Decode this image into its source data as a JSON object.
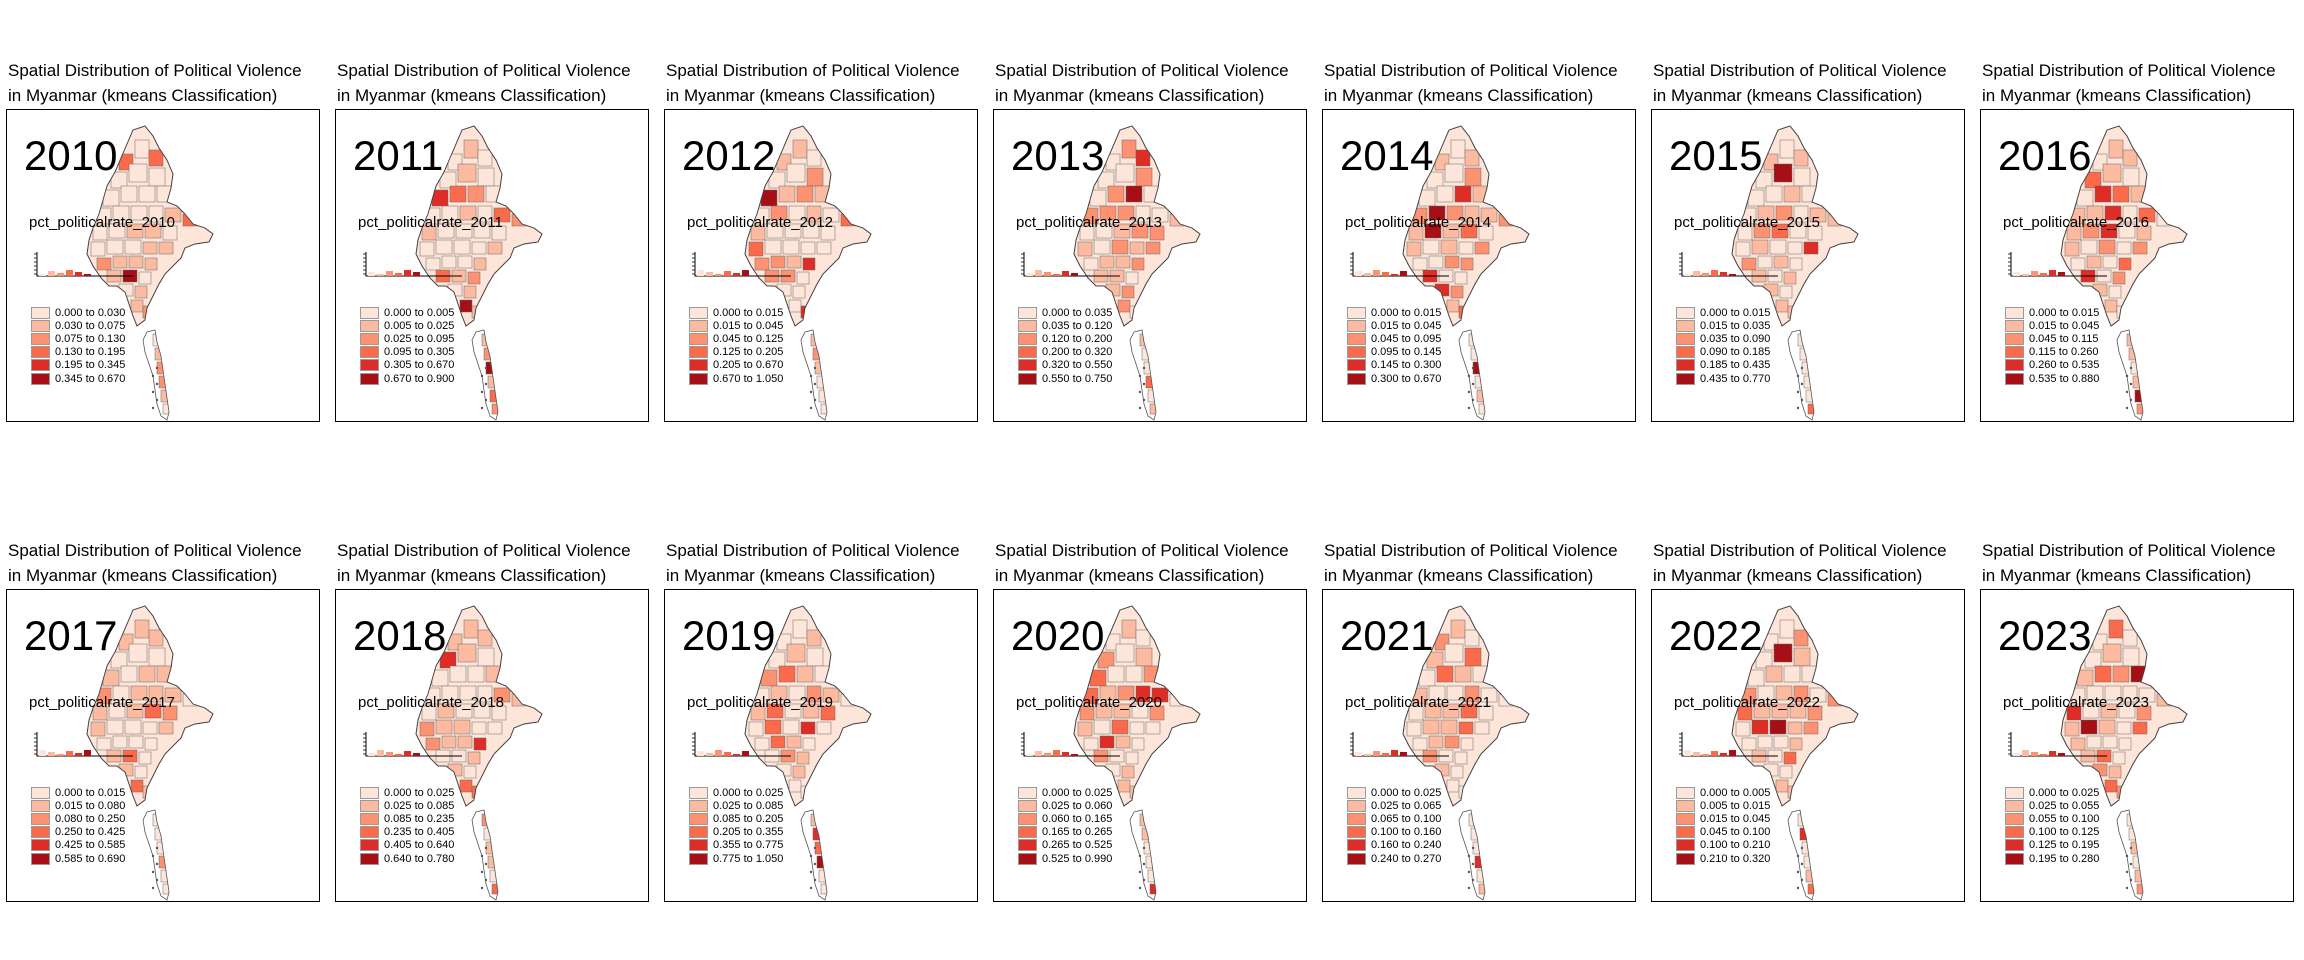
{
  "panel_title_line1": "Spatial Distribution of Political Violence",
  "panel_title_line2": "in Myanmar (kmeans Classification)",
  "palette": [
    "#fee5d9",
    "#fcbba1",
    "#fc9272",
    "#fb6a4a",
    "#de2d26",
    "#a50f15"
  ],
  "panels": [
    {
      "year": "2010",
      "variable": "pct_politicalrate_2010",
      "legend": [
        "0.000 to 0.030",
        "0.030 to 0.075",
        "0.075 to 0.130",
        "0.130 to 0.195",
        "0.195 to 0.345",
        "0.345 to 0.670"
      ]
    },
    {
      "year": "2011",
      "variable": "pct_politicalrate_2011",
      "legend": [
        "0.000 to 0.005",
        "0.005 to 0.025",
        "0.025 to 0.095",
        "0.095 to 0.305",
        "0.305 to 0.670",
        "0.670 to 0.900"
      ]
    },
    {
      "year": "2012",
      "variable": "pct_politicalrate_2012",
      "legend": [
        "0.000 to 0.015",
        "0.015 to 0.045",
        "0.045 to 0.125",
        "0.125 to 0.205",
        "0.205 to 0.670",
        "0.670 to 1.050"
      ]
    },
    {
      "year": "2013",
      "variable": "pct_politicalrate_2013",
      "legend": [
        "0.000 to 0.035",
        "0.035 to 0.120",
        "0.120 to 0.200",
        "0.200 to 0.320",
        "0.320 to 0.550",
        "0.550 to 0.750"
      ]
    },
    {
      "year": "2014",
      "variable": "pct_politicalrate_2014",
      "legend": [
        "0.000 to 0.015",
        "0.015 to 0.045",
        "0.045 to 0.095",
        "0.095 to 0.145",
        "0.145 to 0.300",
        "0.300 to 0.670"
      ]
    },
    {
      "year": "2015",
      "variable": "pct_politicalrate_2015",
      "legend": [
        "0.000 to 0.015",
        "0.015 to 0.035",
        "0.035 to 0.090",
        "0.090 to 0.185",
        "0.185 to 0.435",
        "0.435 to 0.770"
      ]
    },
    {
      "year": "2016",
      "variable": "pct_politicalrate_2016",
      "legend": [
        "0.000 to 0.015",
        "0.015 to 0.045",
        "0.045 to 0.115",
        "0.115 to 0.260",
        "0.260 to 0.535",
        "0.535 to 0.880"
      ]
    },
    {
      "year": "2017",
      "variable": "pct_politicalrate_2017",
      "legend": [
        "0.000 to 0.015",
        "0.015 to 0.080",
        "0.080 to 0.250",
        "0.250 to 0.425",
        "0.425 to 0.585",
        "0.585 to 0.690"
      ]
    },
    {
      "year": "2018",
      "variable": "pct_politicalrate_2018",
      "legend": [
        "0.000 to 0.025",
        "0.025 to 0.085",
        "0.085 to 0.235",
        "0.235 to 0.405",
        "0.405 to 0.640",
        "0.640 to 0.780"
      ]
    },
    {
      "year": "2019",
      "variable": "pct_politicalrate_2019",
      "legend": [
        "0.000 to 0.025",
        "0.025 to 0.085",
        "0.085 to 0.205",
        "0.205 to 0.355",
        "0.355 to 0.775",
        "0.775 to 1.050"
      ]
    },
    {
      "year": "2020",
      "variable": "pct_politicalrate_2020",
      "legend": [
        "0.000 to 0.025",
        "0.025 to 0.060",
        "0.060 to 0.165",
        "0.165 to 0.265",
        "0.265 to 0.525",
        "0.525 to 0.990"
      ]
    },
    {
      "year": "2021",
      "variable": "pct_politicalrate_2021",
      "legend": [
        "0.000 to 0.025",
        "0.025 to 0.065",
        "0.065 to 0.100",
        "0.100 to 0.160",
        "0.160 to 0.240",
        "0.240 to 0.270"
      ]
    },
    {
      "year": "2022",
      "variable": "pct_politicalrate_2022",
      "legend": [
        "0.000 to 0.005",
        "0.005 to 0.015",
        "0.015 to 0.045",
        "0.045 to 0.100",
        "0.100 to 0.210",
        "0.210 to 0.320"
      ]
    },
    {
      "year": "2023",
      "variable": "pct_politicalrate_2023",
      "legend": [
        "0.000 to 0.025",
        "0.025 to 0.055",
        "0.055 to 0.100",
        "0.100 to 0.125",
        "0.125 to 0.195",
        "0.195 to 0.280"
      ]
    }
  ]
}
